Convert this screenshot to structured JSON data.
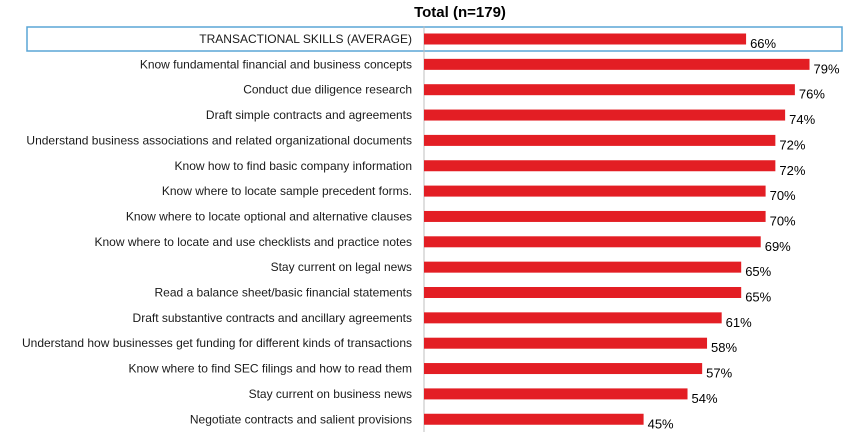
{
  "chart_data": {
    "type": "bar",
    "orientation": "horizontal",
    "title": "Total (n=179)",
    "categories": [
      "TRANSACTIONAL SKILLS (AVERAGE)",
      "Know fundamental financial and business concepts",
      "Conduct due diligence research",
      "Draft simple contracts and agreements",
      "Understand business associations and related organizational documents",
      "Know how to find basic company information",
      "Know where to locate sample precedent forms.",
      "Know where to locate optional and alternative clauses",
      "Know where to locate and use checklists and practice notes",
      "Stay current on legal news",
      "Read a balance sheet/basic financial statements",
      "Draft substantive contracts and ancillary agreements",
      "Understand how businesses get funding for different kinds of transactions",
      "Know where to find SEC filings and how to read them",
      "Stay current on business news",
      "Negotiate contracts and salient provisions"
    ],
    "values": [
      66,
      79,
      76,
      74,
      72,
      72,
      70,
      70,
      69,
      65,
      65,
      61,
      58,
      57,
      54,
      45
    ],
    "value_labels": [
      "66%",
      "79%",
      "76%",
      "74%",
      "72%",
      "72%",
      "70%",
      "70%",
      "69%",
      "65%",
      "65%",
      "61%",
      "58%",
      "57%",
      "54%",
      "45%"
    ],
    "xlim": [
      0,
      100
    ],
    "highlighted_category": "TRANSACTIONAL SKILLS (AVERAGE)",
    "grid": false,
    "colors": {
      "bar": "#e31e24",
      "highlight_border": "#5aa5d6",
      "axis": "#bfbfbf"
    }
  }
}
